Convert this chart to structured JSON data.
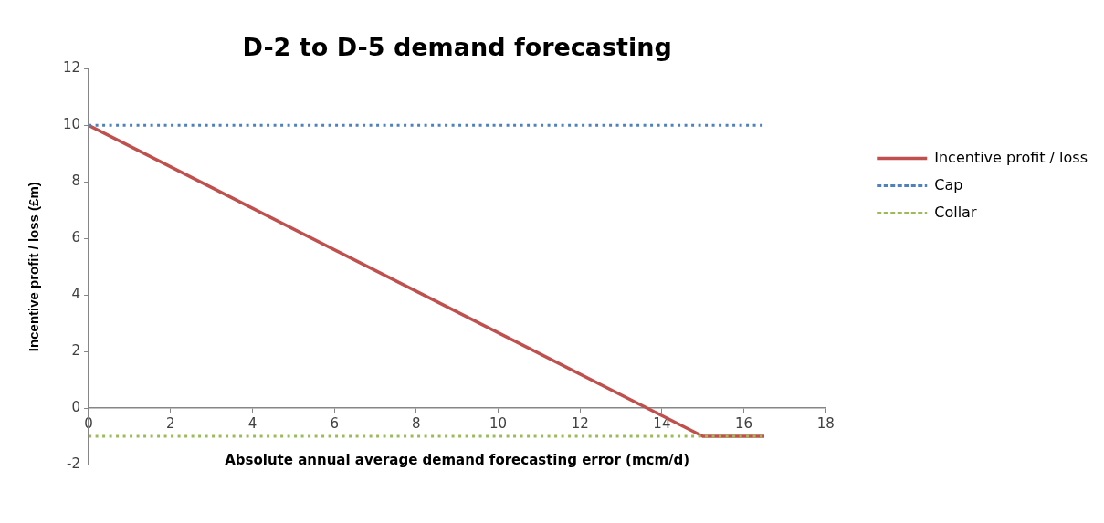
{
  "chart_data": {
    "type": "line",
    "title": "D-2 to D-5 demand forecasting",
    "xlabel": "Absolute annual average demand forecasting error (mcm/d)",
    "ylabel": "Incentive profit / loss (£m)",
    "series": [
      {
        "name": "Incentive profit / loss",
        "color": "#c0504d",
        "x": [
          0,
          15,
          16.5
        ],
        "values": [
          10,
          -1,
          -1
        ],
        "line_style": "solid"
      },
      {
        "name": "Cap",
        "color": "#4f81bd",
        "x": [
          0,
          16.5
        ],
        "values": [
          10,
          10
        ],
        "line_style": "dotted"
      },
      {
        "name": "Collar",
        "color": "#9bbb59",
        "x": [
          0,
          16.5
        ],
        "values": [
          -1,
          -1
        ],
        "line_style": "dotted"
      }
    ],
    "xlim": [
      0,
      18
    ],
    "xticks": [
      0,
      2,
      4,
      6,
      8,
      10,
      12,
      14,
      16,
      18
    ],
    "ylim": [
      -2,
      12
    ],
    "yticks": [
      -2,
      0,
      2,
      4,
      6,
      8,
      10,
      12
    ],
    "grid": false,
    "legend": "right",
    "marker": "none"
  }
}
